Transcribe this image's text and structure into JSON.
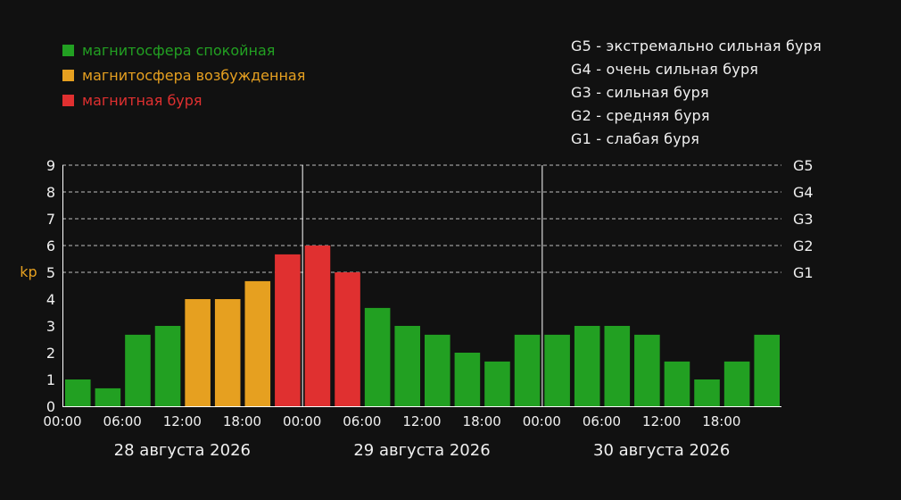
{
  "legend": [
    {
      "label": "магнитосфера спокойная",
      "color": "#22a022"
    },
    {
      "label": "магнитосфера возбужденная",
      "color": "#e6a020"
    },
    {
      "label": "магнитная буря",
      "color": "#e03030"
    }
  ],
  "storm_levels": [
    {
      "label": "G5 - экстремально сильная буря"
    },
    {
      "label": "G4 - очень сильная буря"
    },
    {
      "label": "G3 - сильная буря"
    },
    {
      "label": "G2 - средняя буря"
    },
    {
      "label": "G1 - слабая буря"
    }
  ],
  "chart_data": {
    "type": "bar",
    "ylabel": "kp",
    "ylim": [
      0,
      9
    ],
    "yticks": [
      "0",
      "1",
      "2",
      "3",
      "4",
      "5",
      "6",
      "7",
      "8",
      "9"
    ],
    "grid": "dashed at 5-9",
    "right_labels": [
      {
        "value": 9,
        "label": "G5"
      },
      {
        "value": 8,
        "label": "G4"
      },
      {
        "value": 7,
        "label": "G3"
      },
      {
        "value": 6,
        "label": "G2"
      },
      {
        "value": 5,
        "label": "G1"
      }
    ],
    "x_tick_labels": [
      "00:00",
      "06:00",
      "12:00",
      "18:00",
      "00:00",
      "06:00",
      "12:00",
      "18:00",
      "00:00",
      "06:00",
      "12:00",
      "18:00"
    ],
    "day_labels": [
      "28 августа 2026",
      "29 августа 2026",
      "30 августа 2026"
    ],
    "values": [
      1,
      0.67,
      2.67,
      3,
      4,
      4,
      4.67,
      5.67,
      6,
      5,
      3.67,
      3,
      2.67,
      2,
      1.67,
      2.67,
      2.67,
      3,
      3,
      2.67,
      1.67,
      1,
      1.67,
      2.67
    ],
    "colors": {
      "calm": "#22a022",
      "active": "#e6a020",
      "storm": "#e03030"
    },
    "thresholds": {
      "active": 4,
      "storm": 5
    }
  }
}
